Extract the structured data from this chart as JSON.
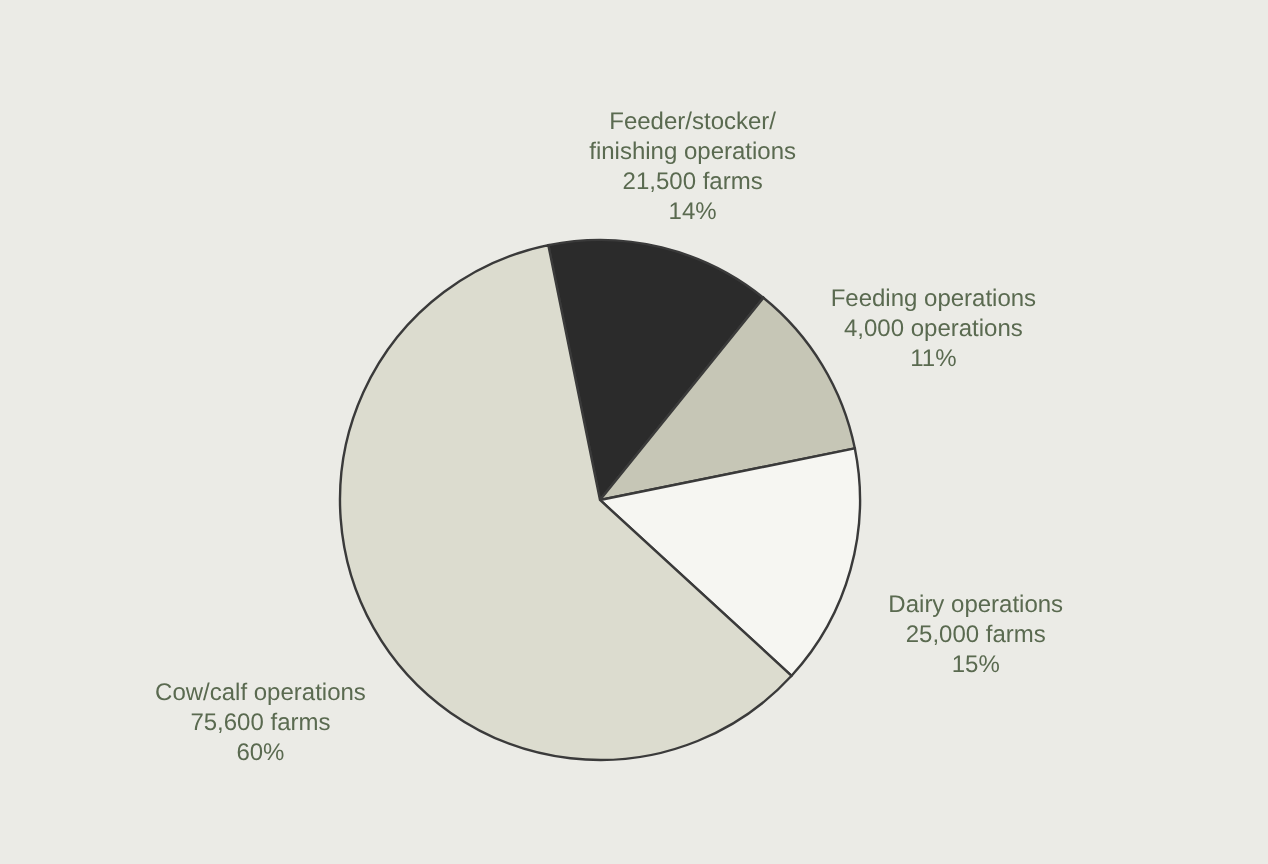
{
  "chart_data": {
    "type": "pie",
    "categories": [
      "Feeder/stocker/\nfinishing operations\n21,500 farms",
      "Feeding operations\n4,000 operations",
      "Dairy operations\n25,000 farms",
      "Cow/calf operations\n75,600 farms"
    ],
    "values": [
      14,
      11,
      15,
      60
    ],
    "value_labels": [
      "14%",
      "11%",
      "15%",
      "60%"
    ],
    "colors": [
      "#2b2b2b",
      "#c6c6b6",
      "#f6f6f2",
      "#dcdccf"
    ],
    "legend": false
  }
}
